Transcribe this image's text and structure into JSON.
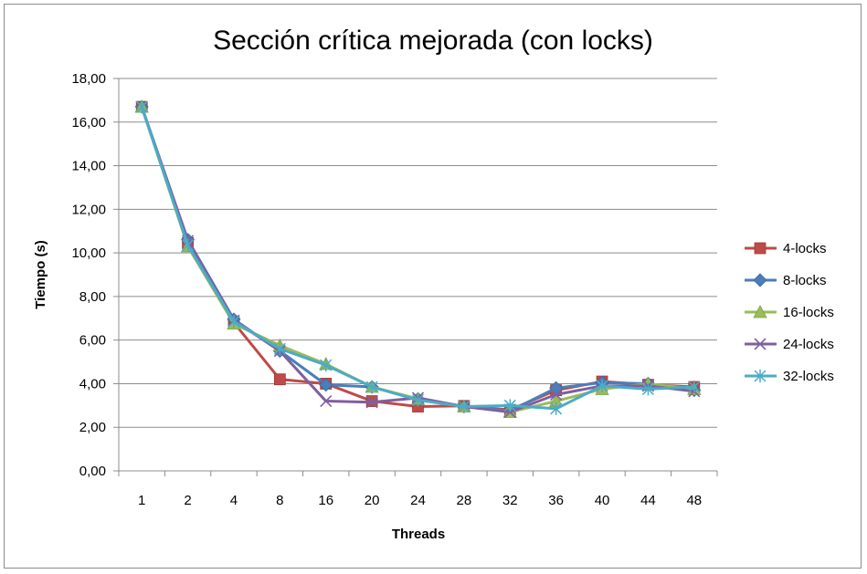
{
  "chart_data": {
    "type": "line",
    "title": "Sección crítica mejorada (con locks)",
    "xlabel": "Threads",
    "ylabel": "Tiempo (s)",
    "categories": [
      "1",
      "2",
      "4",
      "8",
      "16",
      "20",
      "24",
      "28",
      "32",
      "36",
      "40",
      "44",
      "48"
    ],
    "yticks": [
      "0,00",
      "2,00",
      "4,00",
      "6,00",
      "8,00",
      "10,00",
      "12,00",
      "14,00",
      "16,00",
      "18,00"
    ],
    "ylim": [
      0,
      18
    ],
    "grid": true,
    "legend_position": "right",
    "series": [
      {
        "name": "4-locks",
        "color": "#be4b48",
        "marker": "square",
        "values": [
          16.7,
          10.45,
          6.8,
          4.2,
          4.0,
          3.2,
          2.95,
          2.98,
          2.8,
          3.7,
          4.1,
          3.95,
          3.85
        ]
      },
      {
        "name": "8-locks",
        "color": "#4a7ebb",
        "marker": "diamond",
        "values": [
          16.7,
          10.6,
          6.95,
          5.5,
          3.95,
          3.85,
          3.3,
          2.95,
          2.75,
          3.8,
          4.05,
          4.0,
          3.7
        ]
      },
      {
        "name": "16-locks",
        "color": "#9bbb59",
        "marker": "triangle",
        "values": [
          16.7,
          10.3,
          6.75,
          5.75,
          4.9,
          3.85,
          3.3,
          2.95,
          2.7,
          3.2,
          3.75,
          4.0,
          3.75
        ]
      },
      {
        "name": "24-locks",
        "color": "#7f5fa0",
        "marker": "x",
        "values": [
          16.7,
          10.55,
          6.9,
          5.5,
          3.2,
          3.15,
          3.35,
          2.95,
          2.7,
          3.5,
          3.9,
          3.9,
          3.65
        ]
      },
      {
        "name": "32-locks",
        "color": "#4bacc6",
        "marker": "star",
        "values": [
          16.7,
          10.35,
          6.85,
          5.6,
          4.85,
          3.85,
          3.25,
          2.95,
          3.0,
          2.85,
          3.9,
          3.75,
          3.85
        ]
      }
    ]
  }
}
